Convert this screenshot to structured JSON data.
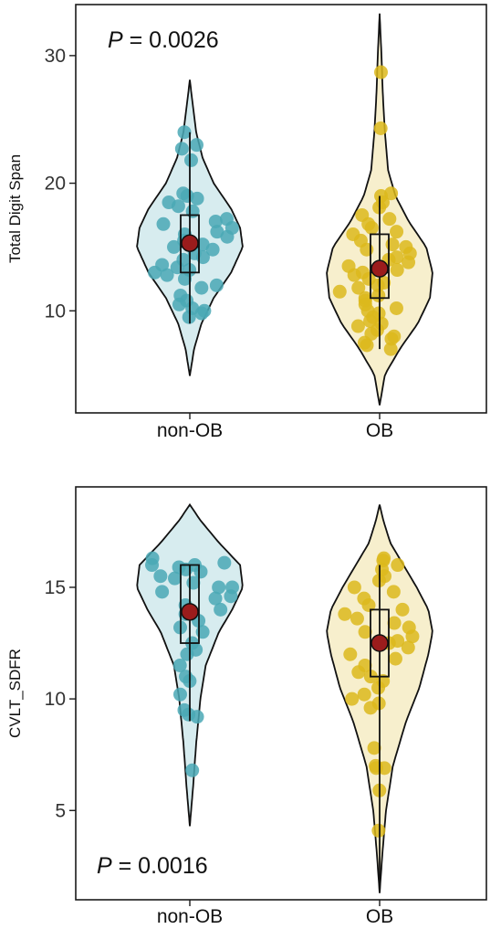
{
  "chart_data": [
    {
      "type": "violin",
      "ylabel": "Total Digit Span",
      "xlabel": "",
      "categories": [
        "non-OB",
        "OB"
      ],
      "ylim": [
        2,
        34
      ],
      "yticks": [
        10,
        20,
        30
      ],
      "grid": false,
      "legend": "none",
      "annotation": {
        "p_label": "P",
        "p_text": " = 0.0026",
        "position": "top-left"
      },
      "colors": {
        "non-OB": "#4aa8b5",
        "OB": "#dcb81c",
        "mean": "#9b1c1c"
      },
      "series": [
        {
          "group": "non-OB",
          "violin_range": [
            4.9,
            28.1
          ],
          "violin_density": [
            [
              4.9,
              0
            ],
            [
              7,
              0.08
            ],
            [
              9,
              0.22
            ],
            [
              11,
              0.45
            ],
            [
              13,
              0.78
            ],
            [
              15,
              1.0
            ],
            [
              16.5,
              0.95
            ],
            [
              18,
              0.78
            ],
            [
              20,
              0.45
            ],
            [
              22,
              0.24
            ],
            [
              24,
              0.12
            ],
            [
              26,
              0.06
            ],
            [
              28.1,
              0
            ]
          ],
          "box": {
            "q1": 13,
            "median": 15,
            "q3": 17.5,
            "whisker_low": 9,
            "whisker_high": 24
          },
          "mean": 15.3,
          "points": [
            24,
            23,
            22.7,
            21.8,
            19.2,
            19,
            18.8,
            18.5,
            18.2,
            17.8,
            17.2,
            17,
            16.8,
            16.5,
            16.2,
            16,
            15.8,
            15.5,
            15.2,
            15,
            14.8,
            14.5,
            14.2,
            14,
            13.6,
            13.4,
            13.2,
            13,
            12.8,
            12.5,
            12,
            11.8,
            11.2,
            10.8,
            10.5,
            10.2,
            10,
            9.8,
            9.5
          ]
        },
        {
          "group": "OB",
          "violin_range": [
            2.6,
            33.3
          ],
          "violin_density": [
            [
              2.6,
              0
            ],
            [
              5,
              0.1
            ],
            [
              7,
              0.38
            ],
            [
              9,
              0.72
            ],
            [
              11,
              0.95
            ],
            [
              13,
              1.0
            ],
            [
              15,
              0.88
            ],
            [
              17,
              0.55
            ],
            [
              19,
              0.3
            ],
            [
              21,
              0.16
            ],
            [
              24,
              0.1
            ],
            [
              27,
              0.06
            ],
            [
              30,
              0.035
            ],
            [
              33.3,
              0
            ]
          ],
          "box": {
            "q1": 11,
            "median": 13,
            "q3": 16,
            "whisker_low": 7,
            "whisker_high": 19
          },
          "mean": 13.3,
          "points": [
            28.7,
            24.3,
            19.2,
            19,
            18.5,
            18.1,
            17.5,
            17.2,
            16.8,
            16.5,
            16.2,
            16,
            15.5,
            15.2,
            15,
            14.8,
            14.5,
            14.2,
            14,
            13.8,
            13.5,
            13.2,
            13,
            12.8,
            12.5,
            12.2,
            12,
            11.8,
            11.5,
            11.2,
            11,
            10.8,
            10.5,
            10.2,
            10,
            9.8,
            9.5,
            9.2,
            9,
            8.8,
            8.5,
            8.2,
            8,
            7.8,
            7.5,
            7.3,
            7
          ]
        }
      ]
    },
    {
      "type": "violin",
      "ylabel": "CVLT_SDFR",
      "xlabel": "",
      "categories": [
        "non-OB",
        "OB"
      ],
      "ylim": [
        1,
        19.5
      ],
      "yticks": [
        5,
        10,
        15
      ],
      "grid": false,
      "legend": "none",
      "annotation": {
        "p_label": "P",
        "p_text": " = 0.0016",
        "position": "bottom-left"
      },
      "colors": {
        "non-OB": "#4aa8b5",
        "OB": "#dcb81c",
        "mean": "#9b1c1c"
      },
      "series": [
        {
          "group": "non-OB",
          "violin_range": [
            4.3,
            18.7
          ],
          "violin_density": [
            [
              4.3,
              0
            ],
            [
              6,
              0.06
            ],
            [
              8,
              0.12
            ],
            [
              10,
              0.2
            ],
            [
              11.5,
              0.3
            ],
            [
              13,
              0.55
            ],
            [
              14,
              0.8
            ],
            [
              15,
              1.0
            ],
            [
              16,
              0.95
            ],
            [
              17,
              0.55
            ],
            [
              18,
              0.2
            ],
            [
              18.7,
              0
            ]
          ],
          "box": {
            "q1": 12.5,
            "median": 14,
            "q3": 16,
            "whisker_low": 9,
            "whisker_high": 16
          },
          "mean": 13.9,
          "points": [
            16.3,
            16.1,
            16,
            16,
            15.9,
            15.8,
            15.7,
            15.5,
            15.4,
            15.2,
            15,
            15,
            14.8,
            14.6,
            14.5,
            14.2,
            14,
            13.8,
            13.5,
            13.2,
            13,
            12.5,
            12.2,
            12,
            11.5,
            11,
            10.8,
            10.2,
            9.5,
            9.3,
            9.2,
            6.8
          ]
        },
        {
          "group": "OB",
          "violin_range": [
            1.3,
            18.7
          ],
          "violin_density": [
            [
              1.3,
              0
            ],
            [
              3,
              0.05
            ],
            [
              5,
              0.12
            ],
            [
              7,
              0.25
            ],
            [
              9,
              0.5
            ],
            [
              10.5,
              0.75
            ],
            [
              12,
              0.92
            ],
            [
              13,
              1.0
            ],
            [
              14,
              0.92
            ],
            [
              15,
              0.7
            ],
            [
              16,
              0.45
            ],
            [
              17,
              0.2
            ],
            [
              18,
              0.07
            ],
            [
              18.7,
              0
            ]
          ],
          "box": {
            "q1": 11,
            "median": 12.5,
            "q3": 14,
            "whisker_low": 1.5,
            "whisker_high": 16
          },
          "mean": 12.5,
          "points": [
            16.3,
            16.2,
            16,
            15.8,
            15.5,
            15.3,
            15,
            14.8,
            14.5,
            14.2,
            14,
            13.8,
            13.6,
            13.4,
            13.2,
            13,
            12.8,
            12.6,
            12.5,
            12.3,
            12,
            11.8,
            11.5,
            11.2,
            11,
            10.8,
            10.5,
            10.2,
            10,
            9.8,
            9.6,
            7.8,
            7,
            6.9,
            6.9,
            5.9,
            4.1
          ]
        }
      ]
    }
  ]
}
